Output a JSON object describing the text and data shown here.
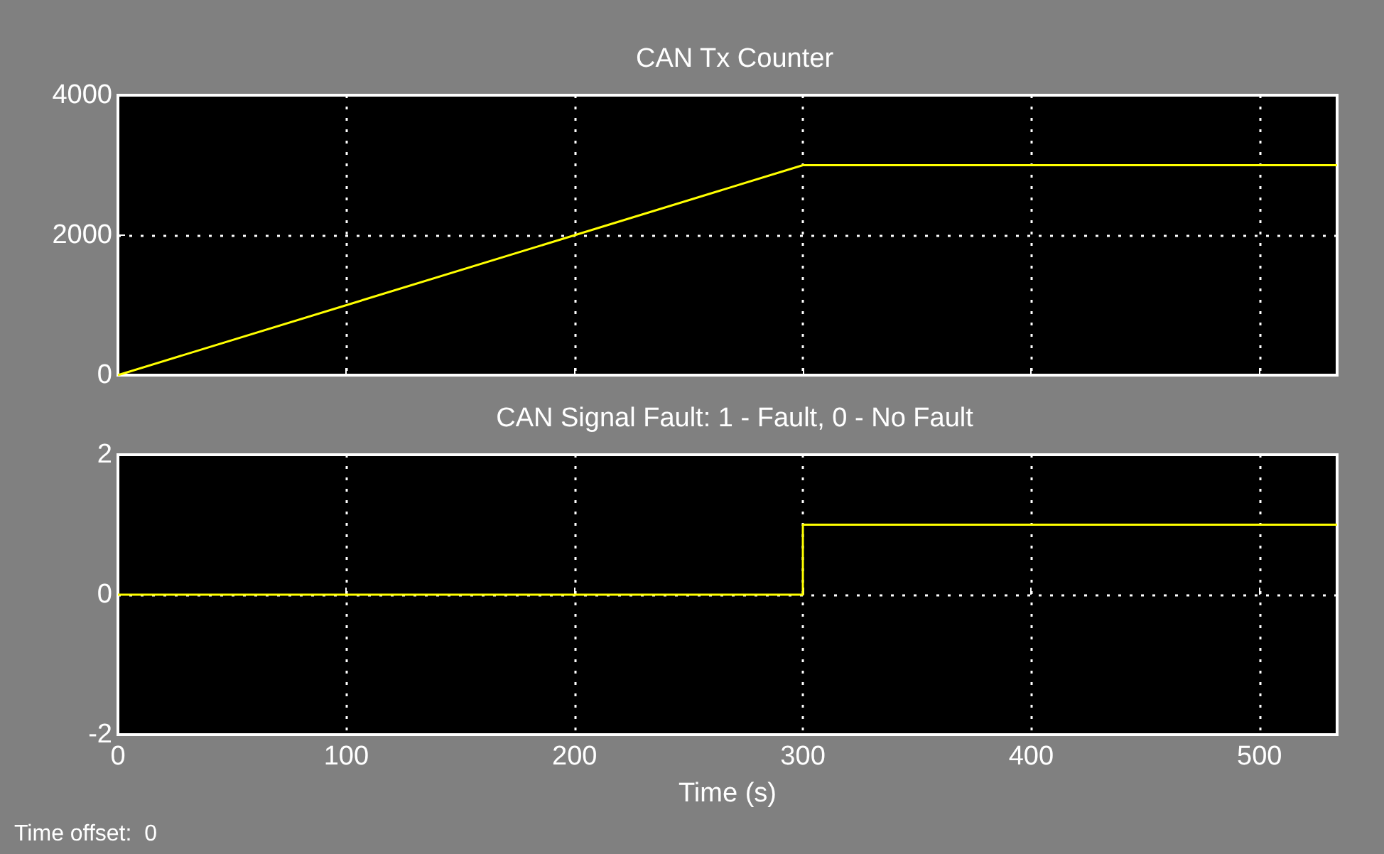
{
  "chart_data": [
    {
      "type": "line",
      "title": "CAN Tx Counter",
      "x": [
        0,
        300,
        534
      ],
      "series": [
        {
          "color": "#ffff00",
          "values": [
            0,
            3000,
            3000
          ]
        }
      ],
      "xlim": [
        0,
        534
      ],
      "xticks": [
        0,
        100,
        200,
        300,
        400,
        500
      ],
      "ylim": [
        0,
        4000
      ],
      "yticks": [
        0,
        2000,
        4000
      ],
      "grid": true,
      "tick_labels": "y",
      "marker": "none",
      "line_style": "solid"
    },
    {
      "type": "line",
      "title": "CAN Signal Fault: 1 - Fault, 0 - No Fault",
      "x": [
        0,
        300,
        300,
        534
      ],
      "series": [
        {
          "color": "#ffff00",
          "values": [
            0,
            0,
            1,
            1
          ]
        }
      ],
      "xlim": [
        0,
        534
      ],
      "xticks": [
        0,
        100,
        200,
        300,
        400,
        500
      ],
      "ylim": [
        -2,
        2
      ],
      "yticks": [
        -2,
        0,
        2
      ],
      "xlabel": "Time (s)",
      "grid": true,
      "marker": "none",
      "line_style": "solid",
      "annotations": [
        "Time offset:  0"
      ]
    }
  ]
}
